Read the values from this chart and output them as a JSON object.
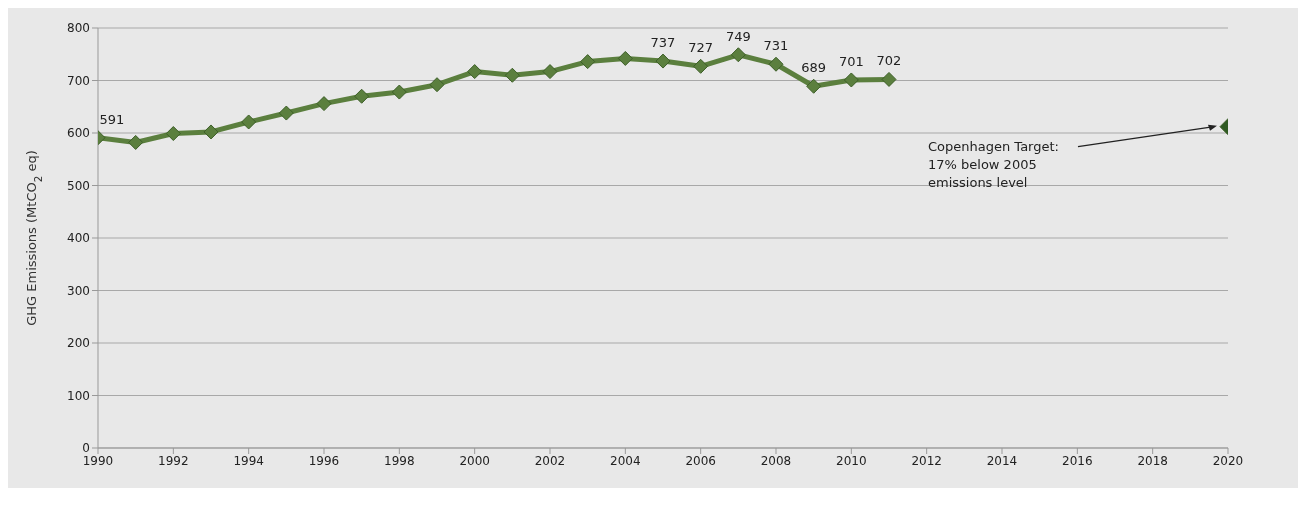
{
  "chart_data": {
    "type": "line",
    "ylabel": "GHG Emissions (MtCO$_{2}$ eq)",
    "xlim": [
      1990,
      2020
    ],
    "xticks": [
      1990,
      1992,
      1994,
      1996,
      1998,
      2000,
      2002,
      2004,
      2006,
      2008,
      2010,
      2012,
      2014,
      2016,
      2018,
      2020
    ],
    "ylim": [
      0,
      800
    ],
    "yticks": [
      0,
      100,
      200,
      300,
      400,
      500,
      600,
      700,
      800
    ],
    "grid": "y",
    "marker": "diamond",
    "line_style": "solid",
    "series": [
      {
        "color": "#5b7f3e",
        "x": [
          1990,
          1991,
          1992,
          1993,
          1994,
          1995,
          1996,
          1997,
          1998,
          1999,
          2000,
          2001,
          2002,
          2003,
          2004,
          2005,
          2006,
          2007,
          2008,
          2009,
          2010,
          2011
        ],
        "values": [
          591,
          582,
          599,
          602,
          621,
          638,
          656,
          670,
          678,
          692,
          717,
          710,
          717,
          736,
          742,
          737,
          727,
          749,
          731,
          689,
          701,
          702
        ],
        "value_labels": [
          "591",
          null,
          null,
          null,
          null,
          null,
          null,
          null,
          null,
          null,
          null,
          null,
          null,
          null,
          null,
          "737",
          "727",
          "749",
          "731",
          "689",
          "701",
          "702"
        ]
      },
      {
        "type": "scatter",
        "color": "#2f5a22",
        "x": [
          2020
        ],
        "values": [
          612
        ]
      }
    ],
    "annotations": [
      "Copenhagen Target: 17% below 2005 emissions level"
    ]
  }
}
